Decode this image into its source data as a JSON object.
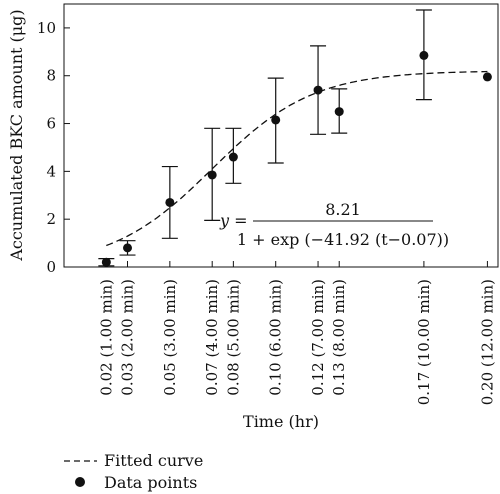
{
  "chart_data": {
    "type": "scatter",
    "xlabel": "Time (hr)",
    "ylabel": "Accumulated BKC amount (μg)",
    "xlim": [
      0,
      0.205
    ],
    "ylim": [
      0,
      11
    ],
    "yticks": [
      0,
      2,
      4,
      6,
      8,
      10
    ],
    "xtick_values": [
      0.02,
      0.03,
      0.05,
      0.07,
      0.08,
      0.1,
      0.12,
      0.13,
      0.17,
      0.2
    ],
    "xtick_labels": [
      "0.02 (1.00 min)",
      "0.03 (2.00 min)",
      "0.05 (3.00 min)",
      "0.07 (4.00 min)",
      "0.08 (5.00 min)",
      "0.10 (6.00 min)",
      "0.12 (7.00 min)",
      "0.13 (8.00 min)",
      "0.17 (10.00 min)",
      "0.20 (12.00 min)"
    ],
    "grid": false,
    "series": [
      {
        "name": "Data points",
        "type": "scatter",
        "x": [
          0.02,
          0.03,
          0.05,
          0.07,
          0.08,
          0.1,
          0.12,
          0.13,
          0.17,
          0.2
        ],
        "y": [
          0.2,
          0.8,
          2.7,
          3.85,
          4.6,
          6.15,
          7.4,
          6.5,
          8.85,
          7.95
        ],
        "err_low": [
          0.15,
          0.3,
          1.5,
          1.9,
          1.1,
          1.8,
          1.85,
          0.9,
          1.85,
          0
        ],
        "err_high": [
          0.15,
          0.3,
          1.5,
          1.95,
          1.2,
          1.75,
          1.85,
          0.95,
          1.9,
          0
        ]
      },
      {
        "name": "Fitted curve",
        "type": "line",
        "style": "dashed",
        "model": {
          "a": 8.21,
          "k": 41.92,
          "t0": 0.07
        }
      }
    ],
    "annotation": {
      "lhs": "y =",
      "numerator": "8.21",
      "denominator": "1 + exp (−41.92 (t−0.07))"
    },
    "legend": {
      "placement": "bottom-left",
      "entries": [
        {
          "label": "Fitted curve",
          "marker": "dashed-line"
        },
        {
          "label": "Data points",
          "marker": "filled-circle"
        }
      ]
    },
    "colors": {
      "line": "#111111",
      "marker": "#111111"
    }
  }
}
